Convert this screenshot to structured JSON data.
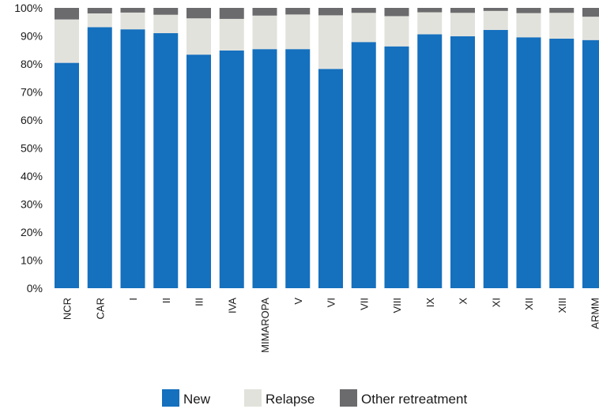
{
  "chart_data": {
    "type": "bar",
    "stacked": true,
    "percent": true,
    "categories": [
      "NCR",
      "CAR",
      "I",
      "II",
      "III",
      "IVA",
      "MIMAROPA",
      "V",
      "VI",
      "VII",
      "VIII",
      "IX",
      "X",
      "XI",
      "XII",
      "XIII",
      "ARMM"
    ],
    "series": [
      {
        "name": "New",
        "color": "#1570be",
        "values": [
          82,
          94.6,
          94.2,
          92.8,
          85,
          86.5,
          87,
          87,
          79.8,
          89.4,
          88,
          92.4,
          91.7,
          94,
          91.3,
          90.8,
          90.3
        ]
      },
      {
        "name": "Relapse",
        "color": "#e2e2dc",
        "values": [
          15.8,
          5,
          6.1,
          6.7,
          13.2,
          11.5,
          12.2,
          12.6,
          19.5,
          10.6,
          11,
          8,
          8.5,
          6.9,
          8.8,
          9.4,
          8.5
        ]
      },
      {
        "name": "Other retreatment",
        "color": "#6b6b6e",
        "values": [
          4.2,
          2,
          1.7,
          2.5,
          3.8,
          4,
          2.8,
          2.4,
          2.7,
          1.8,
          3,
          1.6,
          1.8,
          1.1,
          1.9,
          1.8,
          3.2
        ]
      }
    ],
    "ylim": [
      0,
      100
    ],
    "yticks": [
      "0%",
      "10%",
      "20%",
      "30%",
      "40%",
      "50%",
      "60%",
      "70%",
      "80%",
      "90%",
      "100%"
    ],
    "grid": false,
    "legend_position": "bottom",
    "title": "",
    "xlabel": "",
    "ylabel": ""
  }
}
